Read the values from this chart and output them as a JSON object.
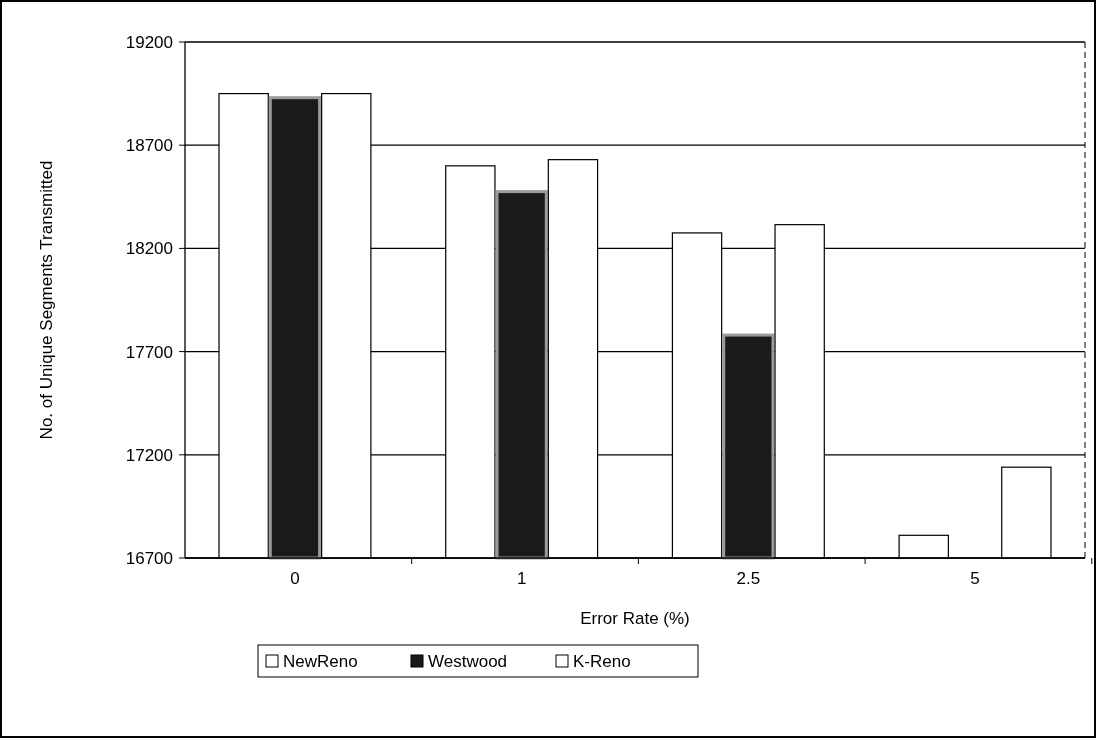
{
  "chart_data": {
    "type": "bar",
    "xlabel": "Error Rate (%)",
    "ylabel": "No. of Unique Segments Transmitted",
    "categories": [
      "0",
      "1",
      "2.5",
      "5"
    ],
    "series": [
      {
        "name": "NewReno",
        "color": "#ffffff",
        "values": [
          18950,
          18600,
          18275,
          16810
        ]
      },
      {
        "name": "Westwood",
        "color": "#1a1a1a",
        "values": [
          18930,
          18475,
          17780,
          null
        ]
      },
      {
        "name": "K-Reno",
        "color": "#ffffff",
        "values": [
          18950,
          18630,
          18315,
          17140
        ]
      }
    ],
    "ylim": [
      16700,
      19200
    ],
    "yticks": [
      16700,
      17200,
      17700,
      18200,
      18700,
      19200
    ],
    "grid": "y",
    "legend": "bottom"
  }
}
